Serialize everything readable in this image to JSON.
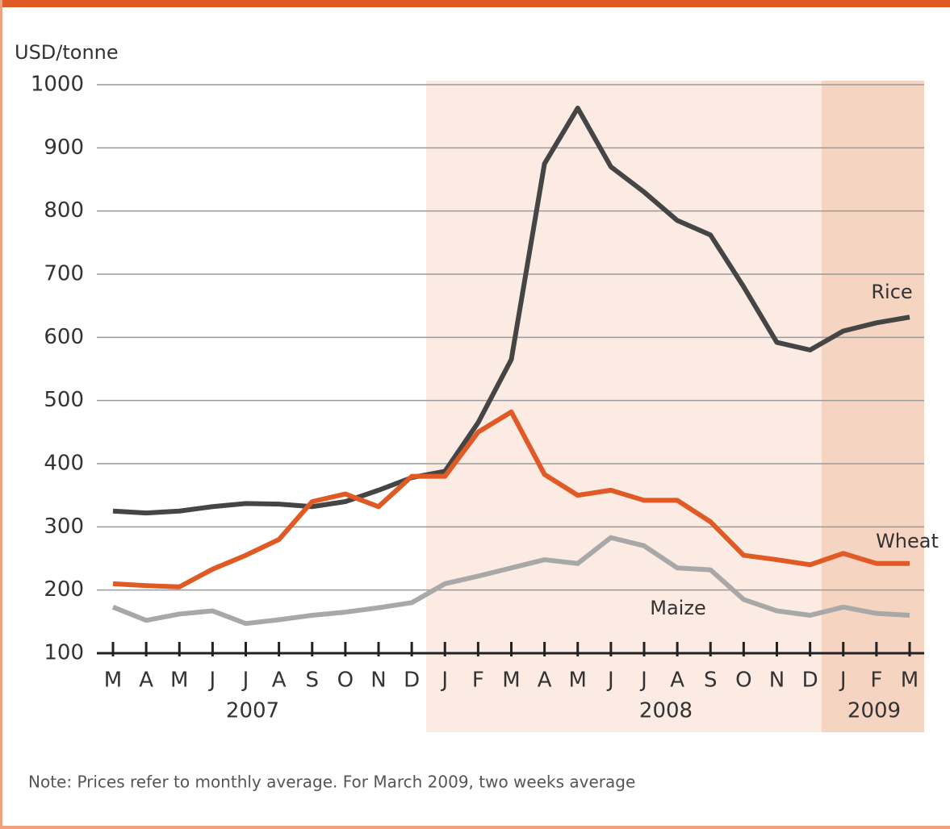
{
  "chart_data": {
    "type": "line",
    "y_axis_label": "USD/tonne",
    "categories": [
      "M",
      "A",
      "M",
      "J",
      "J",
      "A",
      "S",
      "O",
      "N",
      "D",
      "J",
      "F",
      "M",
      "A",
      "M",
      "J",
      "J",
      "A",
      "S",
      "O",
      "N",
      "D",
      "J",
      "F",
      "M"
    ],
    "year_labels": [
      "2007",
      "2008",
      "2009"
    ],
    "series": [
      {
        "name": "Rice",
        "color": "#454545",
        "values": [
          325,
          322,
          325,
          332,
          337,
          336,
          332,
          340,
          358,
          378,
          388,
          465,
          565,
          875,
          963,
          870,
          830,
          785,
          762,
          680,
          592,
          580,
          610,
          623,
          632
        ]
      },
      {
        "name": "Wheat",
        "color": "#e05a26",
        "values": [
          210,
          207,
          205,
          233,
          255,
          280,
          340,
          352,
          332,
          380,
          380,
          450,
          482,
          383,
          350,
          358,
          342,
          342,
          308,
          255,
          248,
          240,
          258,
          242,
          242
        ]
      },
      {
        "name": "Maize",
        "color": "#a8a8a8",
        "values": [
          173,
          152,
          162,
          167,
          147,
          153,
          160,
          165,
          172,
          180,
          210,
          222,
          235,
          248,
          242,
          283,
          270,
          235,
          232,
          185,
          167,
          160,
          173,
          163,
          160
        ]
      }
    ],
    "ylim": [
      100,
      1000
    ],
    "yticks": [
      100,
      200,
      300,
      400,
      500,
      600,
      700,
      800,
      900,
      1000
    ],
    "grid": true,
    "note": "Note: Prices refer to monthly average. For March 2009, two weeks average"
  }
}
